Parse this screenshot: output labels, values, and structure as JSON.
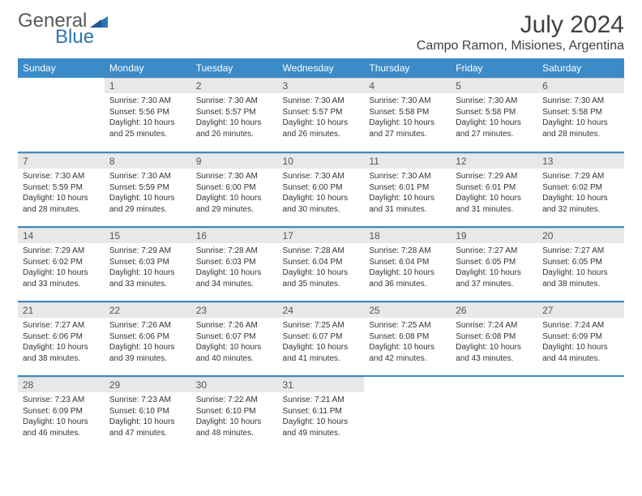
{
  "logo": {
    "word1": "General",
    "word2": "Blue"
  },
  "title": "July 2024",
  "location": "Campo Ramon, Misiones, Argentina",
  "dow": [
    "Sunday",
    "Monday",
    "Tuesday",
    "Wednesday",
    "Thursday",
    "Friday",
    "Saturday"
  ],
  "colors": {
    "header_bg": "#3b8bc9",
    "header_text": "#ffffff",
    "daynum_bg": "#e8e8e8",
    "row_divider": "#3b8bc9",
    "logo_blue": "#2e74b5"
  },
  "weeks": [
    [
      null,
      {
        "n": "1",
        "sr": "7:30 AM",
        "ss": "5:56 PM",
        "dl": "10 hours and 25 minutes."
      },
      {
        "n": "2",
        "sr": "7:30 AM",
        "ss": "5:57 PM",
        "dl": "10 hours and 26 minutes."
      },
      {
        "n": "3",
        "sr": "7:30 AM",
        "ss": "5:57 PM",
        "dl": "10 hours and 26 minutes."
      },
      {
        "n": "4",
        "sr": "7:30 AM",
        "ss": "5:58 PM",
        "dl": "10 hours and 27 minutes."
      },
      {
        "n": "5",
        "sr": "7:30 AM",
        "ss": "5:58 PM",
        "dl": "10 hours and 27 minutes."
      },
      {
        "n": "6",
        "sr": "7:30 AM",
        "ss": "5:58 PM",
        "dl": "10 hours and 28 minutes."
      }
    ],
    [
      {
        "n": "7",
        "sr": "7:30 AM",
        "ss": "5:59 PM",
        "dl": "10 hours and 28 minutes."
      },
      {
        "n": "8",
        "sr": "7:30 AM",
        "ss": "5:59 PM",
        "dl": "10 hours and 29 minutes."
      },
      {
        "n": "9",
        "sr": "7:30 AM",
        "ss": "6:00 PM",
        "dl": "10 hours and 29 minutes."
      },
      {
        "n": "10",
        "sr": "7:30 AM",
        "ss": "6:00 PM",
        "dl": "10 hours and 30 minutes."
      },
      {
        "n": "11",
        "sr": "7:30 AM",
        "ss": "6:01 PM",
        "dl": "10 hours and 31 minutes."
      },
      {
        "n": "12",
        "sr": "7:29 AM",
        "ss": "6:01 PM",
        "dl": "10 hours and 31 minutes."
      },
      {
        "n": "13",
        "sr": "7:29 AM",
        "ss": "6:02 PM",
        "dl": "10 hours and 32 minutes."
      }
    ],
    [
      {
        "n": "14",
        "sr": "7:29 AM",
        "ss": "6:02 PM",
        "dl": "10 hours and 33 minutes."
      },
      {
        "n": "15",
        "sr": "7:29 AM",
        "ss": "6:03 PM",
        "dl": "10 hours and 33 minutes."
      },
      {
        "n": "16",
        "sr": "7:28 AM",
        "ss": "6:03 PM",
        "dl": "10 hours and 34 minutes."
      },
      {
        "n": "17",
        "sr": "7:28 AM",
        "ss": "6:04 PM",
        "dl": "10 hours and 35 minutes."
      },
      {
        "n": "18",
        "sr": "7:28 AM",
        "ss": "6:04 PM",
        "dl": "10 hours and 36 minutes."
      },
      {
        "n": "19",
        "sr": "7:27 AM",
        "ss": "6:05 PM",
        "dl": "10 hours and 37 minutes."
      },
      {
        "n": "20",
        "sr": "7:27 AM",
        "ss": "6:05 PM",
        "dl": "10 hours and 38 minutes."
      }
    ],
    [
      {
        "n": "21",
        "sr": "7:27 AM",
        "ss": "6:06 PM",
        "dl": "10 hours and 38 minutes."
      },
      {
        "n": "22",
        "sr": "7:26 AM",
        "ss": "6:06 PM",
        "dl": "10 hours and 39 minutes."
      },
      {
        "n": "23",
        "sr": "7:26 AM",
        "ss": "6:07 PM",
        "dl": "10 hours and 40 minutes."
      },
      {
        "n": "24",
        "sr": "7:25 AM",
        "ss": "6:07 PM",
        "dl": "10 hours and 41 minutes."
      },
      {
        "n": "25",
        "sr": "7:25 AM",
        "ss": "6:08 PM",
        "dl": "10 hours and 42 minutes."
      },
      {
        "n": "26",
        "sr": "7:24 AM",
        "ss": "6:08 PM",
        "dl": "10 hours and 43 minutes."
      },
      {
        "n": "27",
        "sr": "7:24 AM",
        "ss": "6:09 PM",
        "dl": "10 hours and 44 minutes."
      }
    ],
    [
      {
        "n": "28",
        "sr": "7:23 AM",
        "ss": "6:09 PM",
        "dl": "10 hours and 46 minutes."
      },
      {
        "n": "29",
        "sr": "7:23 AM",
        "ss": "6:10 PM",
        "dl": "10 hours and 47 minutes."
      },
      {
        "n": "30",
        "sr": "7:22 AM",
        "ss": "6:10 PM",
        "dl": "10 hours and 48 minutes."
      },
      {
        "n": "31",
        "sr": "7:21 AM",
        "ss": "6:11 PM",
        "dl": "10 hours and 49 minutes."
      },
      null,
      null,
      null
    ]
  ],
  "labels": {
    "sunrise": "Sunrise:",
    "sunset": "Sunset:",
    "daylight": "Daylight:"
  }
}
